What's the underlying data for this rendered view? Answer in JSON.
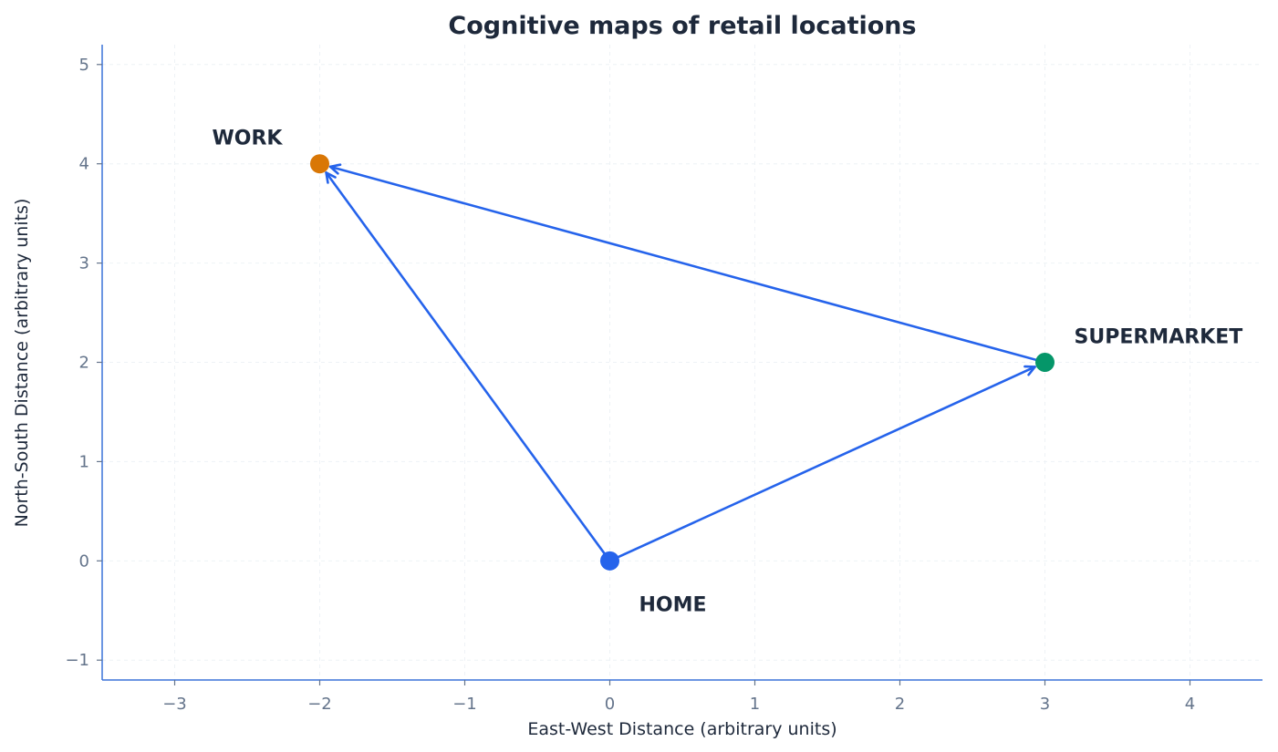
{
  "chart_data": {
    "type": "scatter",
    "title": "Cognitive maps of retail locations",
    "xlabel": "East-West Distance (arbitrary units)",
    "ylabel": "North-South Distance (arbitrary units)",
    "xlim": [
      -3.5,
      4.5
    ],
    "ylim": [
      -1.2,
      5.2
    ],
    "x_ticks": [
      -3,
      -2,
      -1,
      0,
      1,
      2,
      3,
      4
    ],
    "y_ticks": [
      -1,
      0,
      1,
      2,
      3,
      4,
      5
    ],
    "grid": true,
    "points": [
      {
        "label": "HOME",
        "x": 0,
        "y": 0,
        "color": "#2563eb"
      },
      {
        "label": "WORK",
        "x": -2,
        "y": 4,
        "color": "#d97706"
      },
      {
        "label": "SUPERMARKET",
        "x": 3,
        "y": 2,
        "color": "#059669"
      }
    ],
    "arrows": [
      {
        "from": "HOME",
        "to": "WORK"
      },
      {
        "from": "HOME",
        "to": "SUPERMARKET"
      },
      {
        "from": "SUPERMARKET",
        "to": "WORK"
      }
    ],
    "arrow_color": "#2563eb",
    "axis_color": "#3b73d9",
    "grid_color": "#eef2f6"
  }
}
